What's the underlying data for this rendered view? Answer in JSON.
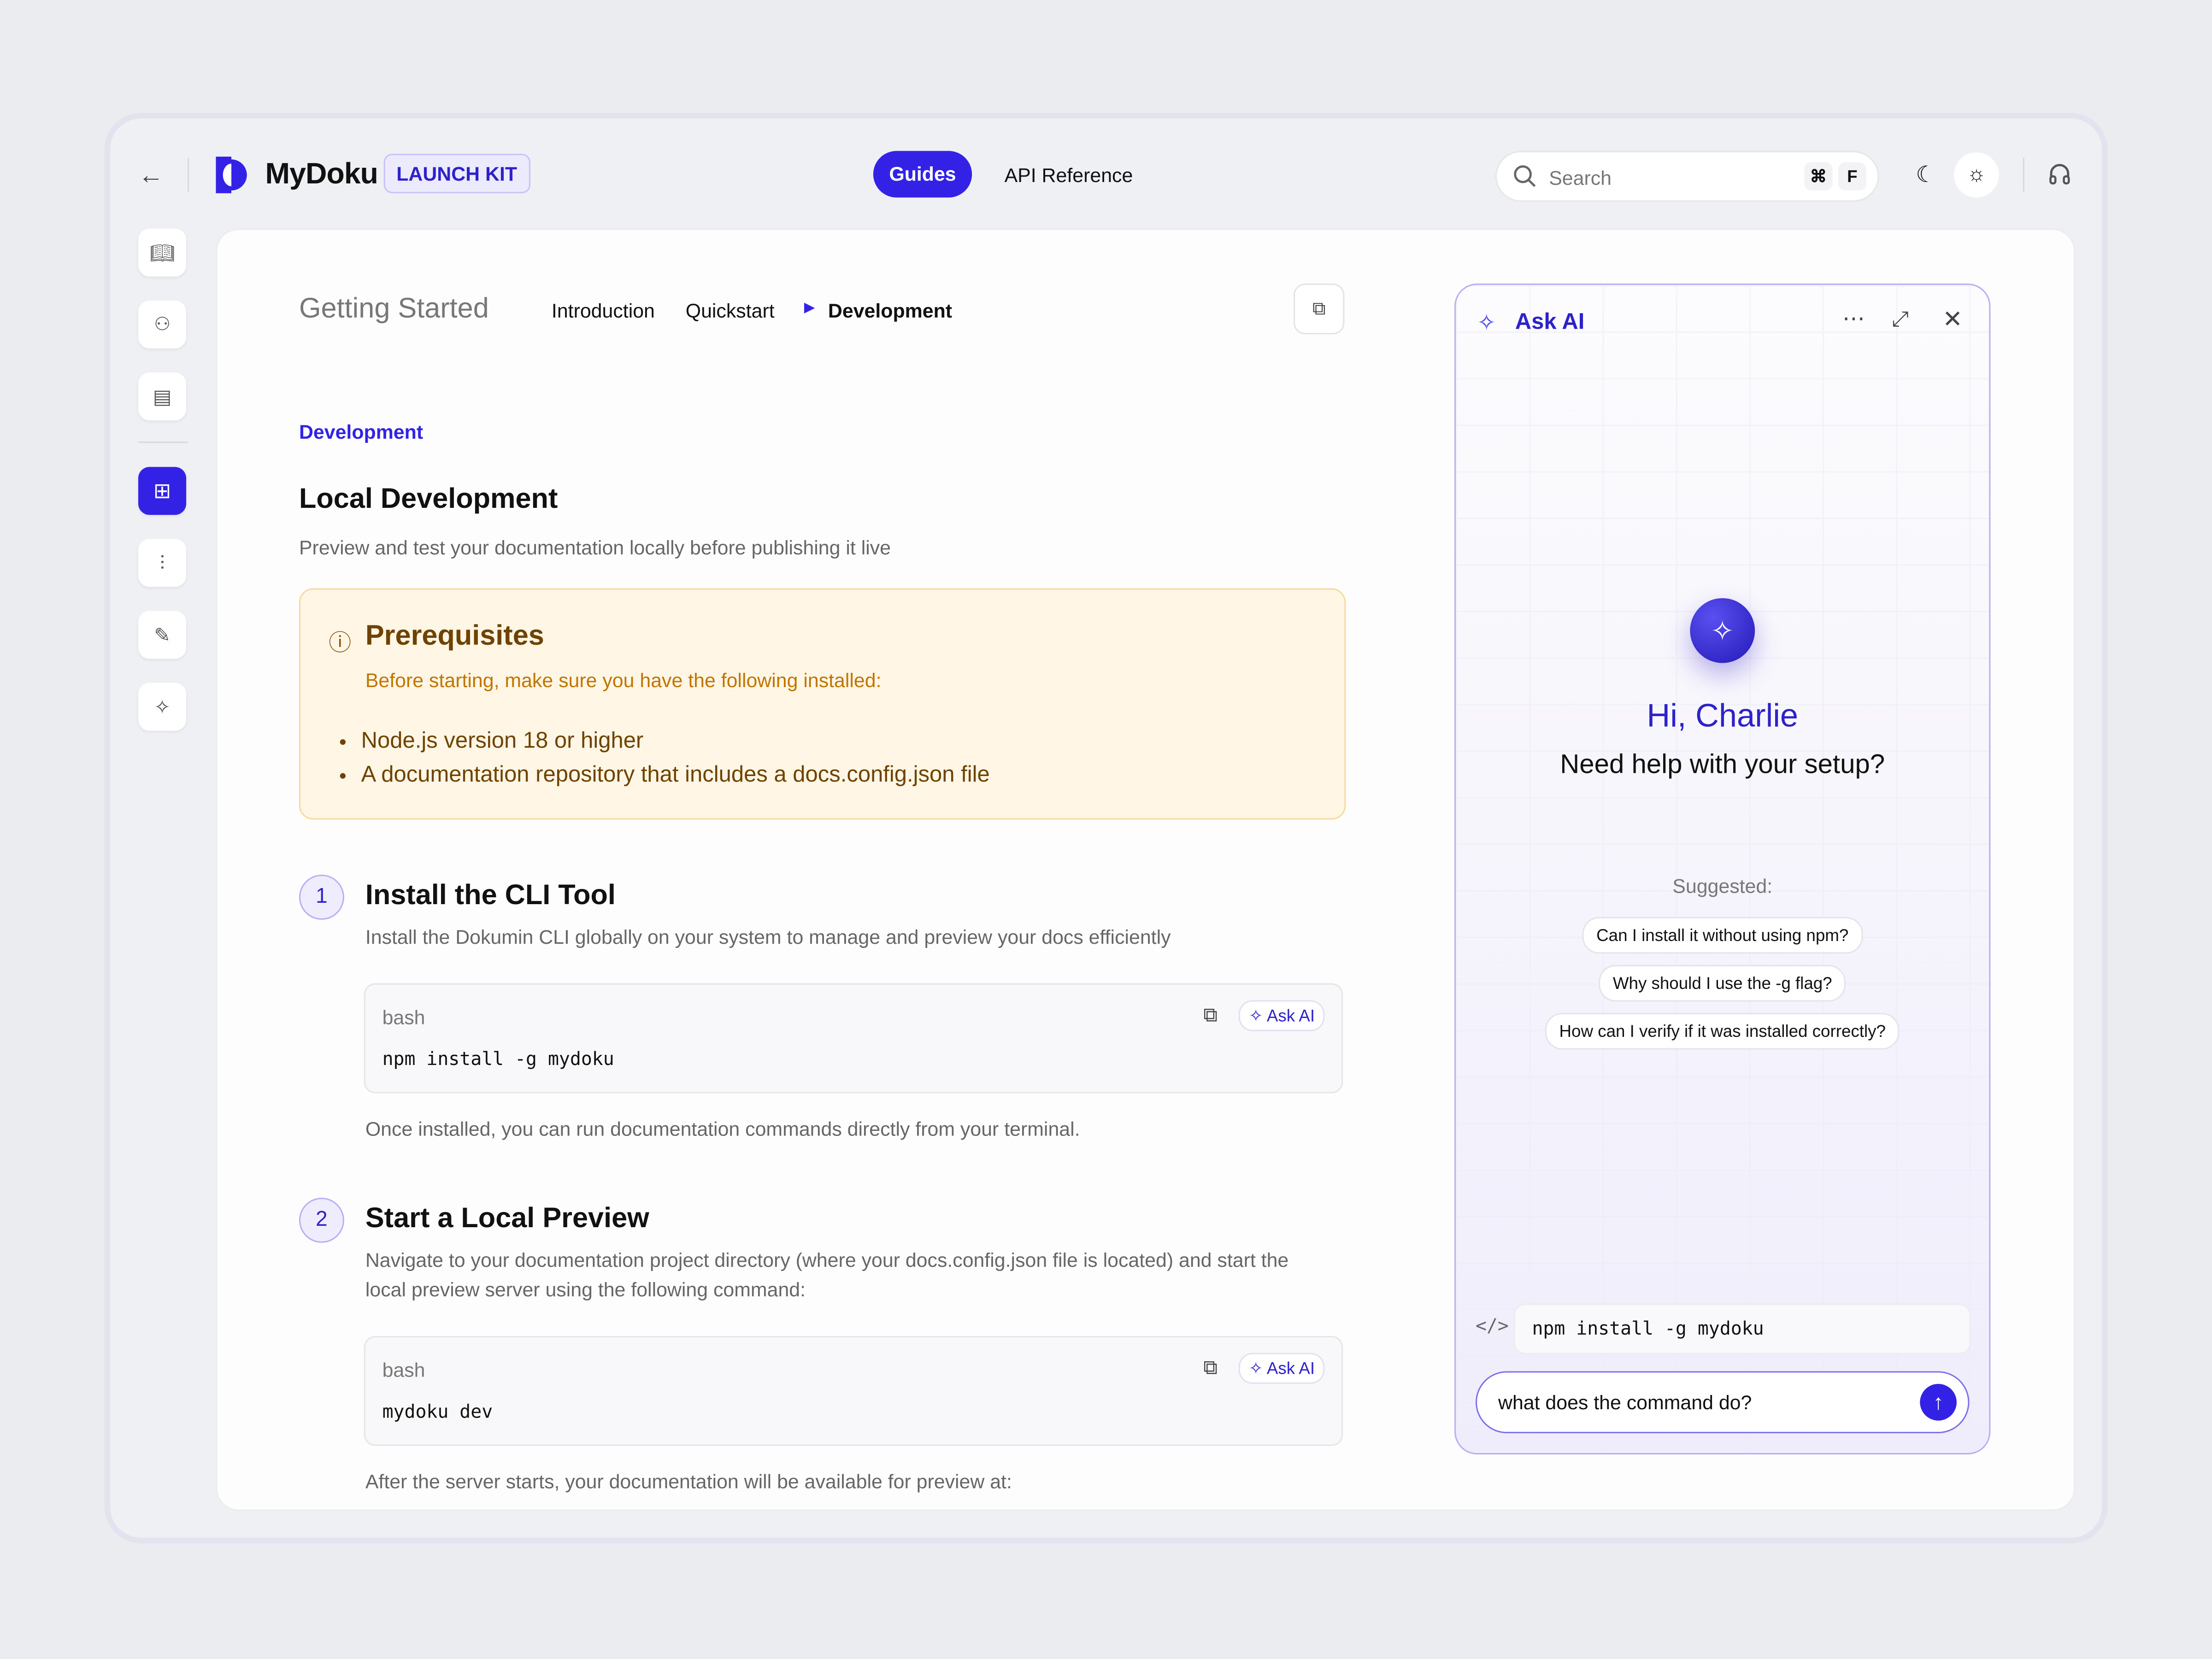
{
  "header": {
    "brand": "MyDoku",
    "badge": "LAUNCH KIT",
    "nav": [
      {
        "label": "Guides",
        "active": true
      },
      {
        "label": "API Reference"
      }
    ],
    "search": {
      "placeholder": "Search",
      "shortcut": [
        "⌘",
        "F"
      ]
    },
    "accent": "#3322e6"
  },
  "sidebar": {
    "items": [
      {
        "icon": "book-icon"
      },
      {
        "icon": "team-icon"
      },
      {
        "icon": "document-icon"
      },
      {
        "icon": "grid-icon",
        "active": true
      },
      {
        "icon": "sliders-icon"
      },
      {
        "icon": "pen-icon"
      },
      {
        "icon": "magic-wand-icon"
      }
    ]
  },
  "breadcrumb": {
    "section": "Getting Started",
    "items": [
      "Introduction",
      "Quickstart",
      "Development"
    ]
  },
  "content": {
    "eyebrow": "Development",
    "title": "Local Development",
    "subtitle": "Preview and test your documentation locally before publishing it live",
    "prereq": {
      "title": "Prerequisites",
      "desc": "Before starting, make sure you have the following installed:",
      "items": [
        "Node.js version 18 or higher",
        "A documentation repository that includes a docs.config.json file"
      ]
    },
    "steps": [
      {
        "num": "1",
        "title": "Install the CLI Tool",
        "desc": "Install the Dokumin CLI globally on your system to manage and preview your docs efficiently",
        "code": {
          "lang": "bash",
          "cmd": "npm install -g mydoku",
          "ask": "Ask AI"
        },
        "after": "Once installed, you can run documentation commands directly from your terminal."
      },
      {
        "num": "2",
        "title": "Start a Local Preview",
        "desc1": "Navigate to your documentation project directory (where your docs.config.json file is located) and start the",
        "desc2": "local preview server using the following command:",
        "code": {
          "lang": "bash",
          "cmd": "mydoku dev",
          "ask": "Ask AI"
        },
        "after": "After the server starts, your documentation will be available for preview at:"
      }
    ]
  },
  "ai": {
    "title": "Ask AI",
    "greeting": "Hi, Charlie",
    "question": "Need help with your setup?",
    "suggested_label": "Suggested:",
    "suggestions": [
      "Can I install it without using npm?",
      "Why should I use the -g flag?",
      "How can I verify if it was installed correctly?"
    ],
    "context_code": "npm install -g mydoku",
    "input_value": "what does the command do?"
  }
}
